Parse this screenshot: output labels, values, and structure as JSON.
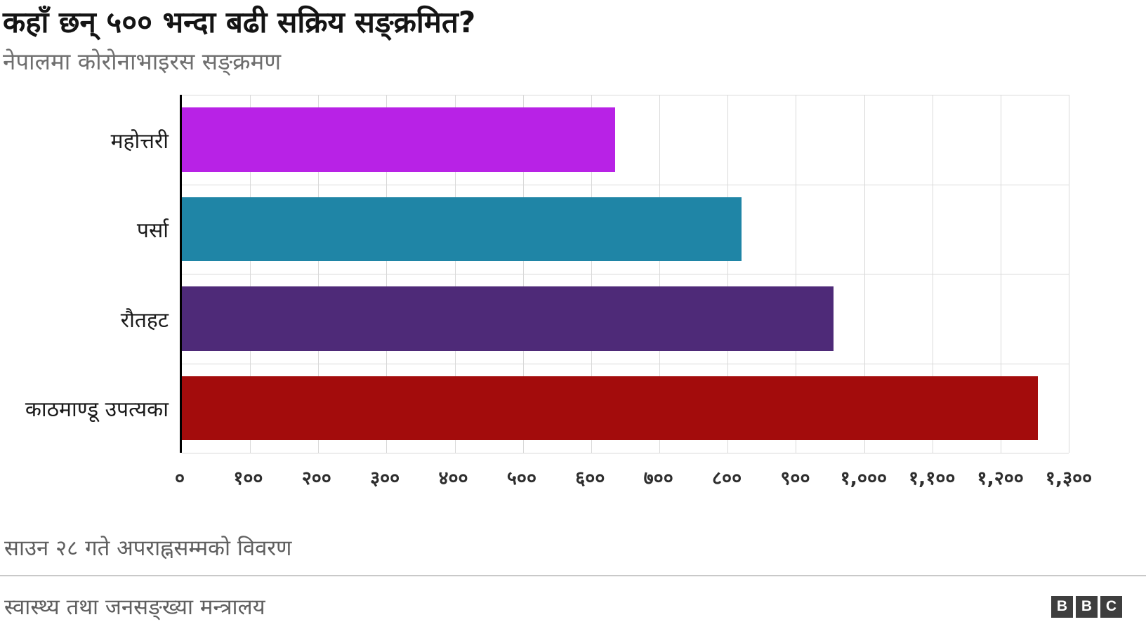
{
  "chart_data": {
    "type": "bar",
    "orientation": "horizontal",
    "title": "कहाँ छन् ५०० भन्दा बढी सक्रिय सङ्क्रमित?",
    "subtitle": "नेपालमा कोरोनाभाइरस सङ्क्रमण",
    "categories": [
      "महोत्तरी",
      "पर्सा",
      "रौतहट",
      "काठमाण्डू उपत्यका"
    ],
    "values": [
      635,
      820,
      955,
      1255
    ],
    "bar_colors": [
      "#b822e6",
      "#1f85a6",
      "#4e2a78",
      "#a30c0c"
    ],
    "xlim": [
      0,
      1300
    ],
    "x_tick_values": [
      0,
      100,
      200,
      300,
      400,
      500,
      600,
      700,
      800,
      900,
      1000,
      1100,
      1200,
      1300
    ],
    "x_tick_labels": [
      "०",
      "१००",
      "२००",
      "३००",
      "४००",
      "५००",
      "६००",
      "७००",
      "८००",
      "९००",
      "१,०००",
      "१,१००",
      "१,२००",
      "१,३००"
    ],
    "grid": true,
    "legend": false,
    "gridline_color": "#d9d9d9",
    "axis_color": "#000000"
  },
  "footer": {
    "note": "साउन २८ गते अपराह्नसम्मको विवरण",
    "source": "स्वास्थ्य तथा जनसङ्ख्या मन्त्रालय",
    "logo_letters": [
      "B",
      "B",
      "C"
    ]
  }
}
